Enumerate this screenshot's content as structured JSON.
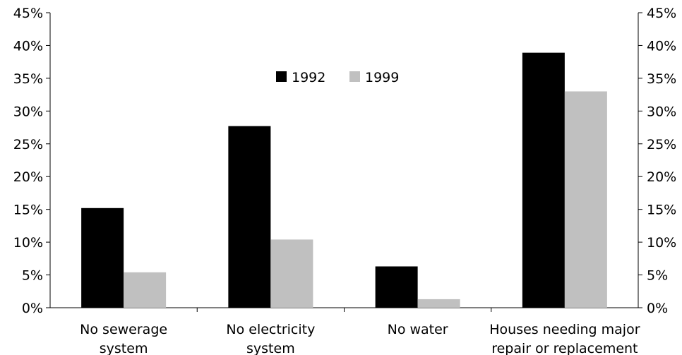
{
  "chart_data": {
    "type": "bar",
    "title": "",
    "xlabel": "",
    "ylabel": "",
    "categories": [
      [
        "No sewerage",
        "system"
      ],
      [
        "No electricity",
        "system"
      ],
      [
        "No water"
      ],
      [
        "Houses needing major",
        "repair or replacement"
      ]
    ],
    "series": [
      {
        "name": "1992",
        "color": "#000000",
        "values": [
          15.2,
          27.7,
          6.3,
          38.9
        ]
      },
      {
        "name": "1999",
        "color": "#c0c0c0",
        "values": [
          5.4,
          10.4,
          1.3,
          33.0
        ]
      }
    ],
    "ylim": [
      0,
      45
    ],
    "yticks": [
      0,
      5,
      10,
      15,
      20,
      25,
      30,
      35,
      40,
      45
    ],
    "ytick_labels": [
      "0%",
      "5%",
      "10%",
      "15%",
      "20%",
      "25%",
      "30%",
      "35%",
      "40%",
      "45%"
    ],
    "right_axis": true,
    "grid": false,
    "legend": "top-center"
  }
}
